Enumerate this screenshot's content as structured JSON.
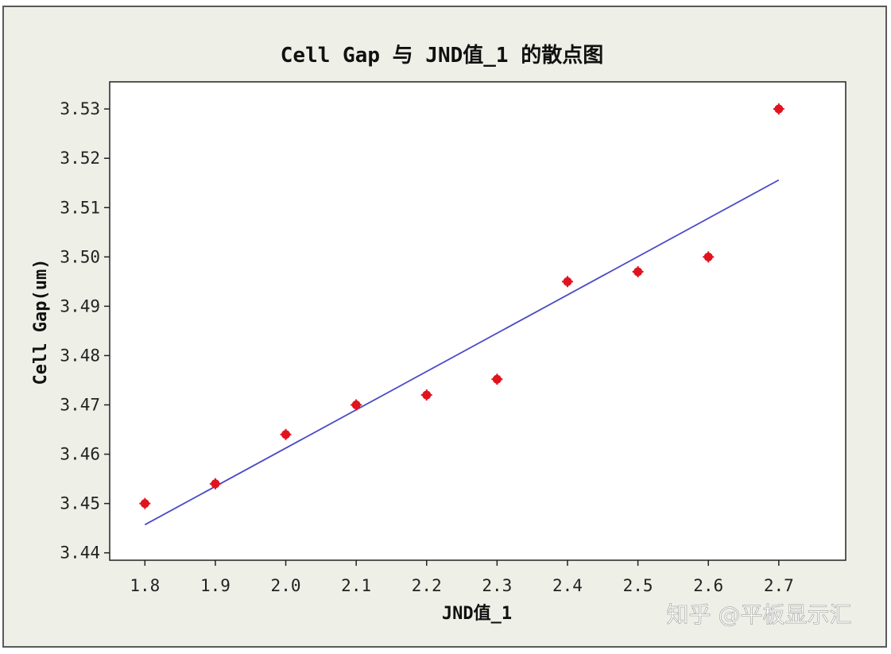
{
  "chart_data": {
    "type": "scatter",
    "title": "Cell Gap 与 JND值_1 的散点图",
    "xlabel": "JND值_1",
    "ylabel": "Cell Gap(um)",
    "xlim": [
      1.75,
      2.795
    ],
    "ylim": [
      3.4385,
      3.5355
    ],
    "xticks": [
      1.8,
      1.9,
      2.0,
      2.1,
      2.2,
      2.3,
      2.4,
      2.5,
      2.6,
      2.7
    ],
    "xtick_labels": [
      "1.8",
      "1.9",
      "2.0",
      "2.1",
      "2.2",
      "2.3",
      "2.4",
      "2.5",
      "2.6",
      "2.7"
    ],
    "yticks": [
      3.44,
      3.45,
      3.46,
      3.47,
      3.48,
      3.49,
      3.5,
      3.51,
      3.52,
      3.53
    ],
    "ytick_labels": [
      "3.44",
      "3.45",
      "3.46",
      "3.47",
      "3.48",
      "3.49",
      "3.50",
      "3.51",
      "3.52",
      "3.53"
    ],
    "x": [
      1.8,
      1.9,
      2.0,
      2.1,
      2.2,
      2.3,
      2.4,
      2.5,
      2.6,
      2.7
    ],
    "y": [
      3.45,
      3.454,
      3.464,
      3.47,
      3.472,
      3.4752,
      3.495,
      3.497,
      3.5,
      3.53
    ],
    "fit_line": {
      "x": [
        1.8,
        2.7
      ],
      "y": [
        3.4457,
        3.5156
      ]
    },
    "grid": false,
    "colors": {
      "points": "#e0141e",
      "fit_line": "#4a4ac8",
      "frame_bg": "#eeefe6",
      "plot_bg": "#ffffff"
    }
  },
  "watermark": "知乎 @平板显示汇"
}
